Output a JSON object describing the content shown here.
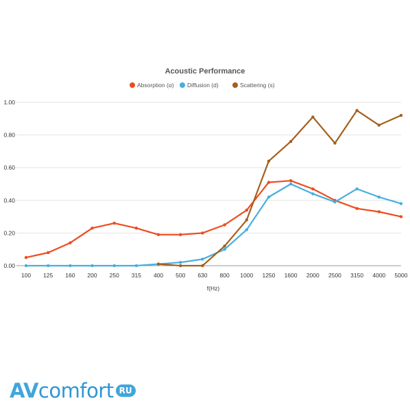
{
  "chart_data": {
    "type": "line",
    "title": "Acoustic Performance",
    "xlabel": "f(Hz)",
    "ylabel": "",
    "categories": [
      "100",
      "125",
      "160",
      "200",
      "250",
      "315",
      "400",
      "500",
      "630",
      "800",
      "1000",
      "1250",
      "1600",
      "2000",
      "2500",
      "3150",
      "4000",
      "5000"
    ],
    "ylim": [
      0,
      1.0
    ],
    "yticks": [
      "0.00",
      "0.20",
      "0.40",
      "0.60",
      "0.80",
      "1.00"
    ],
    "grid": true,
    "legend_position": "top",
    "series": [
      {
        "name": "Absorption (α)",
        "color": "#ee4b1d",
        "values": [
          0.05,
          0.08,
          0.14,
          0.23,
          0.26,
          0.23,
          0.19,
          0.19,
          0.2,
          0.25,
          0.34,
          0.51,
          0.52,
          0.47,
          0.4,
          0.35,
          0.33,
          0.3
        ]
      },
      {
        "name": "Diffusion (d)",
        "color": "#45aee0",
        "values": [
          0.0,
          0.0,
          0.0,
          0.0,
          0.0,
          0.0,
          0.01,
          0.02,
          0.04,
          0.1,
          0.22,
          0.42,
          0.5,
          0.44,
          0.39,
          0.47,
          0.42,
          0.38
        ]
      },
      {
        "name": "Scattering (s)",
        "color": "#a35f1c",
        "values": [
          null,
          null,
          null,
          null,
          null,
          null,
          0.01,
          0.0,
          0.0,
          0.12,
          0.28,
          0.64,
          0.76,
          0.91,
          0.75,
          0.95,
          0.86,
          0.92
        ]
      }
    ]
  },
  "logo": {
    "brand_av": "AV",
    "brand_rest": "comfort",
    "badge": "RU"
  }
}
